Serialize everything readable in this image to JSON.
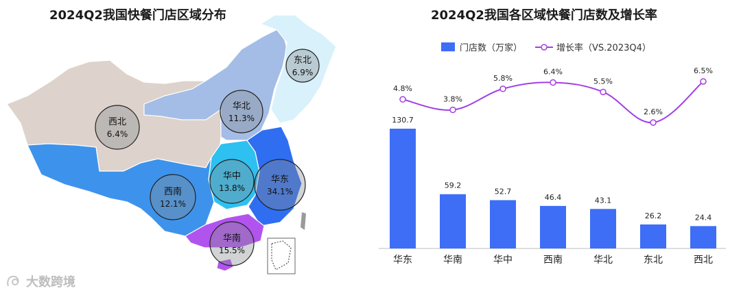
{
  "map": {
    "title": "2024Q2我国快餐门店区域分布",
    "regions": [
      {
        "name": "东北",
        "share": "6.9%",
        "color": "#d8f1fb"
      },
      {
        "name": "华北",
        "share": "11.3%",
        "color": "#a4bde6"
      },
      {
        "name": "西北",
        "share": "6.4%",
        "color": "#ddd3cc"
      },
      {
        "name": "华中",
        "share": "13.8%",
        "color": "#2ec0f0"
      },
      {
        "name": "华东",
        "share": "34.1%",
        "color": "#2f6ef0"
      },
      {
        "name": "西南",
        "share": "12.1%",
        "color": "#3d93ec"
      },
      {
        "name": "华南",
        "share": "15.5%",
        "color": "#b154ee"
      }
    ]
  },
  "chart_data": {
    "type": "bar",
    "title": "2024Q2我国各区域快餐门店数及增长率",
    "categories": [
      "华东",
      "华南",
      "华中",
      "西南",
      "华北",
      "东北",
      "西北"
    ],
    "series": [
      {
        "name": "门店数（万家）",
        "type": "bar",
        "color": "#3d6ef5",
        "values": [
          130.7,
          59.2,
          52.7,
          46.4,
          43.1,
          26.2,
          24.4
        ]
      },
      {
        "name": "增长率（VS.2023Q4）",
        "type": "line",
        "color": "#a23ee6",
        "values": [
          4.8,
          3.8,
          5.8,
          6.4,
          5.5,
          2.6,
          6.5
        ]
      }
    ],
    "value_labels": [
      "130.7",
      "59.2",
      "52.7",
      "46.4",
      "43.1",
      "26.2",
      "24.4"
    ],
    "rate_labels": [
      "4.8%",
      "3.8%",
      "5.8%",
      "6.4%",
      "5.5%",
      "2.6%",
      "6.5%"
    ],
    "legend_position": "top",
    "grid": false
  },
  "watermark": {
    "text": "大数跨境"
  }
}
